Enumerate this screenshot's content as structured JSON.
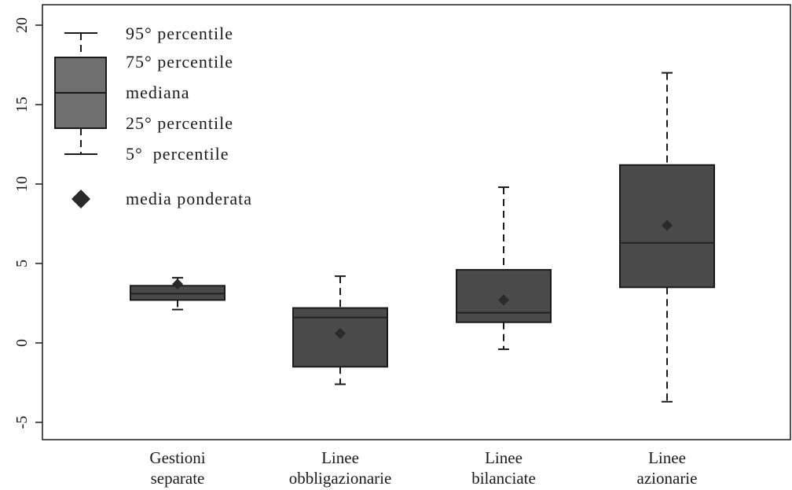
{
  "chart_data": {
    "type": "box",
    "title": "",
    "xlabel": "",
    "ylabel": "",
    "ylim": [
      -6,
      20.5
    ],
    "y_ticks": [
      -5,
      0,
      5,
      10,
      15,
      20
    ],
    "y_tick_labels": [
      "-5",
      "0",
      "5",
      "10",
      "15",
      "20"
    ],
    "grid": false,
    "legend_position": "top-left",
    "colors": {
      "box_fill": "#4a4a4a",
      "legend_box_fill": "#6f6f6f",
      "line": "#1a1a1a",
      "marker": "#2a2a2a"
    },
    "categories": [
      {
        "label_lines": [
          "Gestioni",
          "separate"
        ],
        "p5": 2.1,
        "p25": 2.7,
        "median": 3.1,
        "p75": 3.6,
        "p95": 4.1,
        "mean": 3.7
      },
      {
        "label_lines": [
          "Linee",
          "obbligazionarie"
        ],
        "p5": -2.6,
        "p25": -1.5,
        "median": 1.6,
        "p75": 2.2,
        "p95": 4.2,
        "mean": 0.6
      },
      {
        "label_lines": [
          "Linee",
          "bilanciate"
        ],
        "p5": -0.4,
        "p25": 1.3,
        "median": 1.9,
        "p75": 4.6,
        "p95": 9.8,
        "mean": 2.7
      },
      {
        "label_lines": [
          "Linee",
          "azionarie"
        ],
        "p5": -3.7,
        "p25": 3.5,
        "median": 6.3,
        "p75": 11.2,
        "p95": 17.0,
        "mean": 7.4
      }
    ],
    "legend": {
      "p95": "95° percentile",
      "p75": "75° percentile",
      "median": "mediana",
      "p25": "25° percentile",
      "p5": "5°  percentile",
      "mean": "media ponderata"
    }
  }
}
